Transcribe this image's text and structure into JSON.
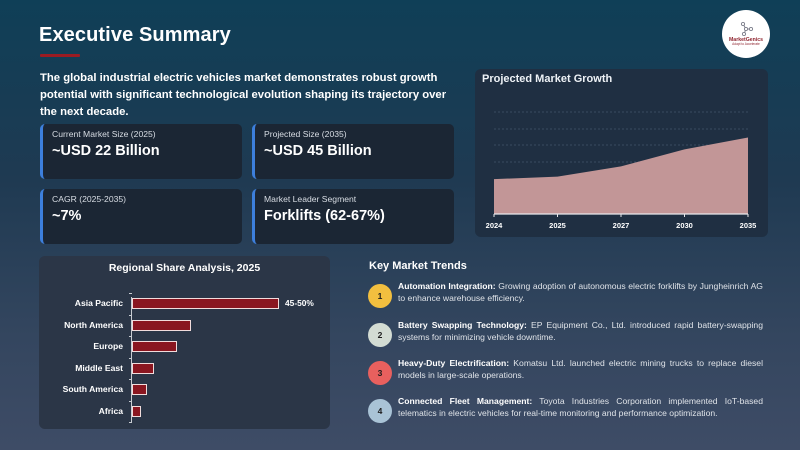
{
  "header": {
    "title": "Executive Summary",
    "accent_color": "#9b1b22",
    "logo": {
      "brand": "MarketGenics",
      "tagline": "Adapt to Accelerate"
    }
  },
  "intro": "The global industrial electric vehicles market demonstrates robust growth potential with significant technological evolution shaping its trajectory over the next decade.",
  "metrics": [
    {
      "label": "Current Market Size (2025)",
      "value": "~USD 22 Billion"
    },
    {
      "label": "Projected Size (2035)",
      "value": "~USD 45 Billion"
    },
    {
      "label": "CAGR (2025-2035)",
      "value": "~7%"
    },
    {
      "label": "Market Leader Segment",
      "value": "Forklifts (62-67%)"
    }
  ],
  "growth_chart": {
    "title": "Projected Market Growth",
    "fill_color": "#c29697"
  },
  "regional_chart": {
    "title": "Regional Share Analysis, 2025",
    "bar_color": "#8a1620"
  },
  "trends": {
    "title": "Key Market Trends",
    "items": [
      {
        "number": "1",
        "color": "#f2bf3f",
        "heading": "Automation Integration:",
        "body": " Growing adoption of autonomous electric forklifts by Jungheinrich AG to enhance warehouse efficiency."
      },
      {
        "number": "2",
        "color": "#d3dcd3",
        "heading": "Battery Swapping Technology:",
        "body": " EP Equipment Co., Ltd. introduced rapid battery-swapping systems for minimizing vehicle downtime."
      },
      {
        "number": "3",
        "color": "#e8605e",
        "heading": "Heavy-Duty Electrification:",
        "body": " Komatsu Ltd. launched electric mining trucks to replace diesel models in large-scale operations."
      },
      {
        "number": "4",
        "color": "#a9c3d6",
        "heading": "Connected Fleet Management:",
        "body": " Toyota Industries Corporation implemented IoT-based telematics in electric vehicles for real-time monitoring and performance optimization."
      }
    ]
  },
  "chart_data": [
    {
      "type": "area",
      "title": "Projected Market Growth",
      "categories": [
        "2024",
        "2025",
        "2027",
        "2030",
        "2035"
      ],
      "values": [
        20.5,
        22,
        28,
        38,
        45
      ],
      "xlabel": "",
      "ylabel": "",
      "ylim": [
        0,
        60
      ],
      "grid": true,
      "y_ticks_visible": false,
      "legend": "none"
    },
    {
      "type": "bar",
      "orientation": "horizontal",
      "title": "Regional Share Analysis, 2025",
      "categories": [
        "Asia Pacific",
        "North America",
        "Europe",
        "Middle East",
        "South America",
        "Africa"
      ],
      "values": [
        47.5,
        19,
        14.5,
        7,
        5,
        3
      ],
      "data_labels": {
        "Asia Pacific": "45-50%"
      },
      "xlabel": "",
      "ylabel": "",
      "grid": false,
      "legend": "none"
    }
  ]
}
